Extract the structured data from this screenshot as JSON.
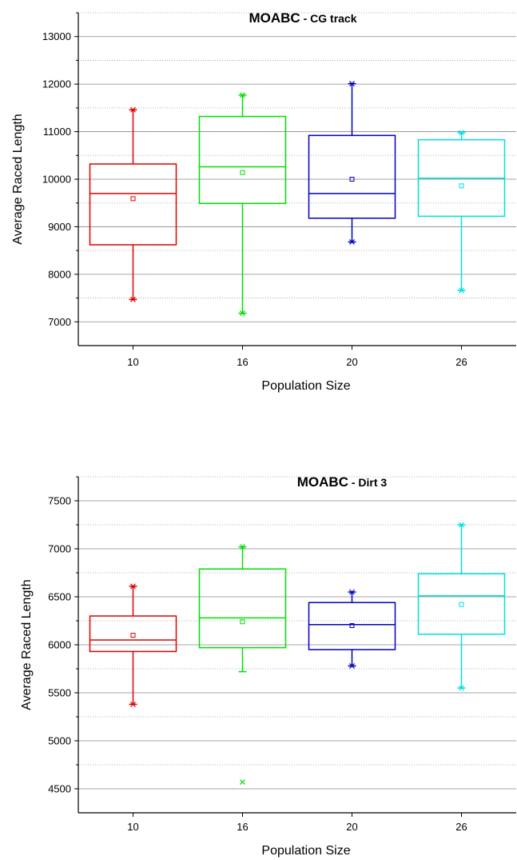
{
  "chart_data": [
    {
      "type": "box",
      "title": "MOABC",
      "subtitle": " - CG track",
      "xlabel": "Population Size",
      "ylabel": "Average Raced Length",
      "categories": [
        "10",
        "16",
        "20",
        "26"
      ],
      "ylim": [
        6500,
        13500
      ],
      "yticks": [
        "7000",
        "8000",
        "9000",
        "10000",
        "11000",
        "12000",
        "13000"
      ],
      "grid": "horizontal major + dotted minor",
      "boxes": [
        {
          "category": "10",
          "color": "#e00000",
          "whisker_low": 7470,
          "q1": 8620,
          "median": 9700,
          "q3": 10320,
          "whisker_high": 11460,
          "mean": 9590,
          "min": 7470,
          "max": 11460,
          "outliers": []
        },
        {
          "category": "16",
          "color": "#00e000",
          "whisker_low": 7180,
          "q1": 9490,
          "median": 10260,
          "q3": 11320,
          "whisker_high": 11770,
          "mean": 10140,
          "min": 7180,
          "max": 11770,
          "outliers": []
        },
        {
          "category": "20",
          "color": "#0000c0",
          "whisker_low": 8680,
          "q1": 9180,
          "median": 9700,
          "q3": 10920,
          "whisker_high": 12010,
          "mean": 10000,
          "min": 8680,
          "max": 12010,
          "outliers": []
        },
        {
          "category": "26",
          "color": "#00e0e0",
          "whisker_low": 7660,
          "q1": 9220,
          "median": 10020,
          "q3": 10830,
          "whisker_high": 10980,
          "mean": 9860,
          "min": 7660,
          "max": 10980,
          "outliers": []
        }
      ]
    },
    {
      "type": "box",
      "title": "MOABC",
      "subtitle": " - Dirt 3",
      "xlabel": "Population Size",
      "ylabel": "Average Raced Length",
      "categories": [
        "10",
        "16",
        "20",
        "26"
      ],
      "ylim": [
        4250,
        7750
      ],
      "yticks": [
        "4500",
        "5000",
        "5500",
        "6000",
        "6500",
        "7000",
        "7500"
      ],
      "grid": "horizontal major + dotted minor",
      "boxes": [
        {
          "category": "10",
          "color": "#e00000",
          "whisker_low": 5380,
          "q1": 5930,
          "median": 6050,
          "q3": 6300,
          "whisker_high": 6610,
          "mean": 6100,
          "min": 5380,
          "max": 6610,
          "outliers": []
        },
        {
          "category": "16",
          "color": "#00e000",
          "whisker_low": 5720,
          "q1": 5970,
          "median": 6280,
          "q3": 6790,
          "whisker_high": 7020,
          "mean": 6240,
          "min": 4570,
          "max": 7020,
          "outliers": [
            4570
          ]
        },
        {
          "category": "20",
          "color": "#0000c0",
          "whisker_low": 5780,
          "q1": 5950,
          "median": 6210,
          "q3": 6440,
          "whisker_high": 6550,
          "mean": 6200,
          "min": 5780,
          "max": 6550,
          "outliers": []
        },
        {
          "category": "26",
          "color": "#00e0e0",
          "whisker_low": 5550,
          "q1": 6110,
          "median": 6510,
          "q3": 6740,
          "whisker_high": 7250,
          "mean": 6420,
          "min": 5550,
          "max": 7250,
          "outliers": []
        }
      ]
    }
  ]
}
